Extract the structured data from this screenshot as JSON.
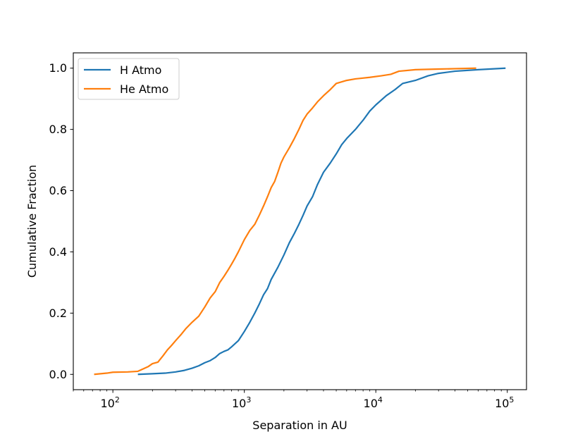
{
  "chart_data": {
    "type": "line",
    "title": "",
    "xlabel": "Separation in AU",
    "ylabel": "Cumulative Fraction",
    "xscale": "log",
    "xlim": [
      50,
      140000
    ],
    "ylim": [
      -0.05,
      1.05
    ],
    "grid": false,
    "legend_position": "upper-left",
    "xticks": [
      {
        "value": 100,
        "base": "10",
        "exp": "2"
      },
      {
        "value": 1000,
        "base": "10",
        "exp": "3"
      },
      {
        "value": 10000,
        "base": "10",
        "exp": "4"
      },
      {
        "value": 100000,
        "base": "10",
        "exp": "5"
      }
    ],
    "yticks": [
      {
        "value": 0.0,
        "label": "0.0"
      },
      {
        "value": 0.2,
        "label": "0.2"
      },
      {
        "value": 0.4,
        "label": "0.4"
      },
      {
        "value": 0.6,
        "label": "0.6"
      },
      {
        "value": 0.8,
        "label": "0.8"
      },
      {
        "value": 1.0,
        "label": "1.0"
      }
    ],
    "series": [
      {
        "name": "H Atmo",
        "color": "#1f77b4",
        "points": [
          [
            155,
            0.0
          ],
          [
            200,
            0.002
          ],
          [
            250,
            0.004
          ],
          [
            300,
            0.008
          ],
          [
            350,
            0.013
          ],
          [
            400,
            0.02
          ],
          [
            450,
            0.028
          ],
          [
            500,
            0.038
          ],
          [
            550,
            0.045
          ],
          [
            600,
            0.055
          ],
          [
            650,
            0.068
          ],
          [
            700,
            0.075
          ],
          [
            750,
            0.08
          ],
          [
            800,
            0.09
          ],
          [
            900,
            0.11
          ],
          [
            1000,
            0.14
          ],
          [
            1100,
            0.17
          ],
          [
            1200,
            0.2
          ],
          [
            1300,
            0.23
          ],
          [
            1400,
            0.26
          ],
          [
            1500,
            0.28
          ],
          [
            1600,
            0.31
          ],
          [
            1800,
            0.35
          ],
          [
            2000,
            0.39
          ],
          [
            2200,
            0.43
          ],
          [
            2400,
            0.46
          ],
          [
            2600,
            0.49
          ],
          [
            2800,
            0.52
          ],
          [
            3000,
            0.55
          ],
          [
            3300,
            0.58
          ],
          [
            3600,
            0.62
          ],
          [
            4000,
            0.66
          ],
          [
            4500,
            0.69
          ],
          [
            5000,
            0.72
          ],
          [
            5500,
            0.75
          ],
          [
            6000,
            0.77
          ],
          [
            7000,
            0.8
          ],
          [
            8000,
            0.83
          ],
          [
            9000,
            0.86
          ],
          [
            10000,
            0.88
          ],
          [
            12000,
            0.91
          ],
          [
            14000,
            0.93
          ],
          [
            16000,
            0.95
          ],
          [
            20000,
            0.96
          ],
          [
            25000,
            0.975
          ],
          [
            30000,
            0.983
          ],
          [
            40000,
            0.99
          ],
          [
            60000,
            0.995
          ],
          [
            97000,
            1.0
          ]
        ]
      },
      {
        "name": "He Atmo",
        "color": "#ff7f0e",
        "points": [
          [
            72,
            0.0
          ],
          [
            90,
            0.004
          ],
          [
            100,
            0.007
          ],
          [
            130,
            0.008
          ],
          [
            155,
            0.01
          ],
          [
            170,
            0.018
          ],
          [
            185,
            0.025
          ],
          [
            200,
            0.035
          ],
          [
            220,
            0.04
          ],
          [
            240,
            0.06
          ],
          [
            260,
            0.08
          ],
          [
            280,
            0.095
          ],
          [
            300,
            0.11
          ],
          [
            330,
            0.13
          ],
          [
            360,
            0.15
          ],
          [
            400,
            0.17
          ],
          [
            450,
            0.19
          ],
          [
            500,
            0.22
          ],
          [
            550,
            0.25
          ],
          [
            600,
            0.27
          ],
          [
            650,
            0.3
          ],
          [
            700,
            0.32
          ],
          [
            750,
            0.34
          ],
          [
            800,
            0.36
          ],
          [
            850,
            0.38
          ],
          [
            900,
            0.4
          ],
          [
            1000,
            0.44
          ],
          [
            1100,
            0.47
          ],
          [
            1200,
            0.49
          ],
          [
            1300,
            0.52
          ],
          [
            1400,
            0.55
          ],
          [
            1500,
            0.58
          ],
          [
            1600,
            0.61
          ],
          [
            1700,
            0.63
          ],
          [
            1800,
            0.66
          ],
          [
            1900,
            0.69
          ],
          [
            2000,
            0.71
          ],
          [
            2200,
            0.74
          ],
          [
            2400,
            0.77
          ],
          [
            2600,
            0.8
          ],
          [
            2800,
            0.83
          ],
          [
            3000,
            0.85
          ],
          [
            3300,
            0.87
          ],
          [
            3600,
            0.89
          ],
          [
            4000,
            0.91
          ],
          [
            4500,
            0.93
          ],
          [
            5000,
            0.95
          ],
          [
            6000,
            0.96
          ],
          [
            7000,
            0.965
          ],
          [
            9000,
            0.97
          ],
          [
            11000,
            0.975
          ],
          [
            13000,
            0.98
          ],
          [
            15000,
            0.99
          ],
          [
            20000,
            0.995
          ],
          [
            30000,
            0.997
          ],
          [
            58000,
            1.0
          ]
        ]
      }
    ]
  }
}
